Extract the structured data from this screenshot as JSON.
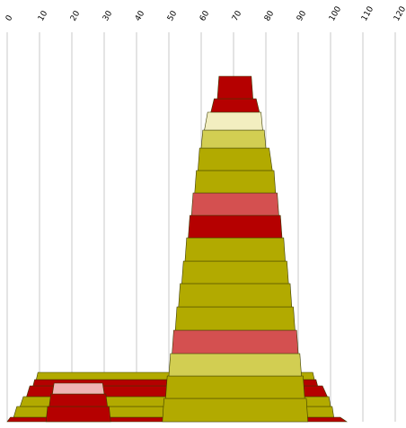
{
  "colors": {
    "olive": "#b2aa00",
    "olive_light": "#d2ce52",
    "cream": "#f2eec0",
    "red_dark": "#b50000",
    "red_medium": "#d45050",
    "pink": "#efb4b4",
    "gridline": "#c8c8c8",
    "background": "#ffffff"
  },
  "chart_data": {
    "type": "area",
    "description_of_form": "stacked trapezoid bands along a shared horizontal axis",
    "x_axis": {
      "ticks": [
        "0",
        "10",
        "20",
        "30",
        "40",
        "50",
        "60",
        "70",
        "80",
        "90",
        "100",
        "110",
        "120"
      ],
      "range": [
        0,
        120
      ],
      "position": "top",
      "label_rotation": "-60deg"
    },
    "grid": true,
    "stacks": [
      {
        "name": "",
        "bands": [
          {
            "x_start": 0,
            "x_end": 105,
            "color": "red_dark"
          },
          {
            "x_start": 2,
            "x_end": 101,
            "color": "olive"
          },
          {
            "x_start": 4,
            "x_end": 100,
            "color": "olive"
          },
          {
            "x_start": 6,
            "x_end": 99,
            "color": "red_dark"
          },
          {
            "x_start": 8,
            "x_end": 96,
            "color": "red_dark"
          },
          {
            "x_start": 9,
            "x_end": 95,
            "color": "olive"
          }
        ]
      },
      {
        "name": "",
        "bands": [
          {
            "x_start": 12,
            "x_end": 32,
            "color": "red_dark"
          },
          {
            "x_start": 13,
            "x_end": 31,
            "color": "red_dark"
          },
          {
            "x_start": 14,
            "x_end": 30,
            "color": "pink"
          }
        ]
      },
      {
        "name": "",
        "bands": [
          {
            "x_start": 48,
            "x_end": 93,
            "color": "olive"
          },
          {
            "x_start": 49,
            "x_end": 92,
            "color": "olive"
          },
          {
            "x_start": 50,
            "x_end": 91,
            "color": "olive_light"
          },
          {
            "x_start": 51,
            "x_end": 90,
            "color": "red_medium"
          },
          {
            "x_start": 52,
            "x_end": 89,
            "color": "olive"
          },
          {
            "x_start": 53,
            "x_end": 88,
            "color": "olive"
          },
          {
            "x_start": 54,
            "x_end": 87,
            "color": "olive"
          },
          {
            "x_start": 55,
            "x_end": 86,
            "color": "olive"
          },
          {
            "x_start": 56,
            "x_end": 85,
            "color": "red_dark"
          },
          {
            "x_start": 57,
            "x_end": 84,
            "color": "red_medium"
          },
          {
            "x_start": 58,
            "x_end": 83,
            "color": "olive"
          },
          {
            "x_start": 59,
            "x_end": 82,
            "color": "olive"
          },
          {
            "x_start": 60,
            "x_end": 80,
            "color": "olive_light"
          },
          {
            "x_start": 61,
            "x_end": 79,
            "color": "cream"
          },
          {
            "x_start": 63,
            "x_end": 78,
            "color": "red_dark"
          },
          {
            "x_start": 65,
            "x_end": 76,
            "color": "red_dark"
          }
        ]
      }
    ]
  }
}
